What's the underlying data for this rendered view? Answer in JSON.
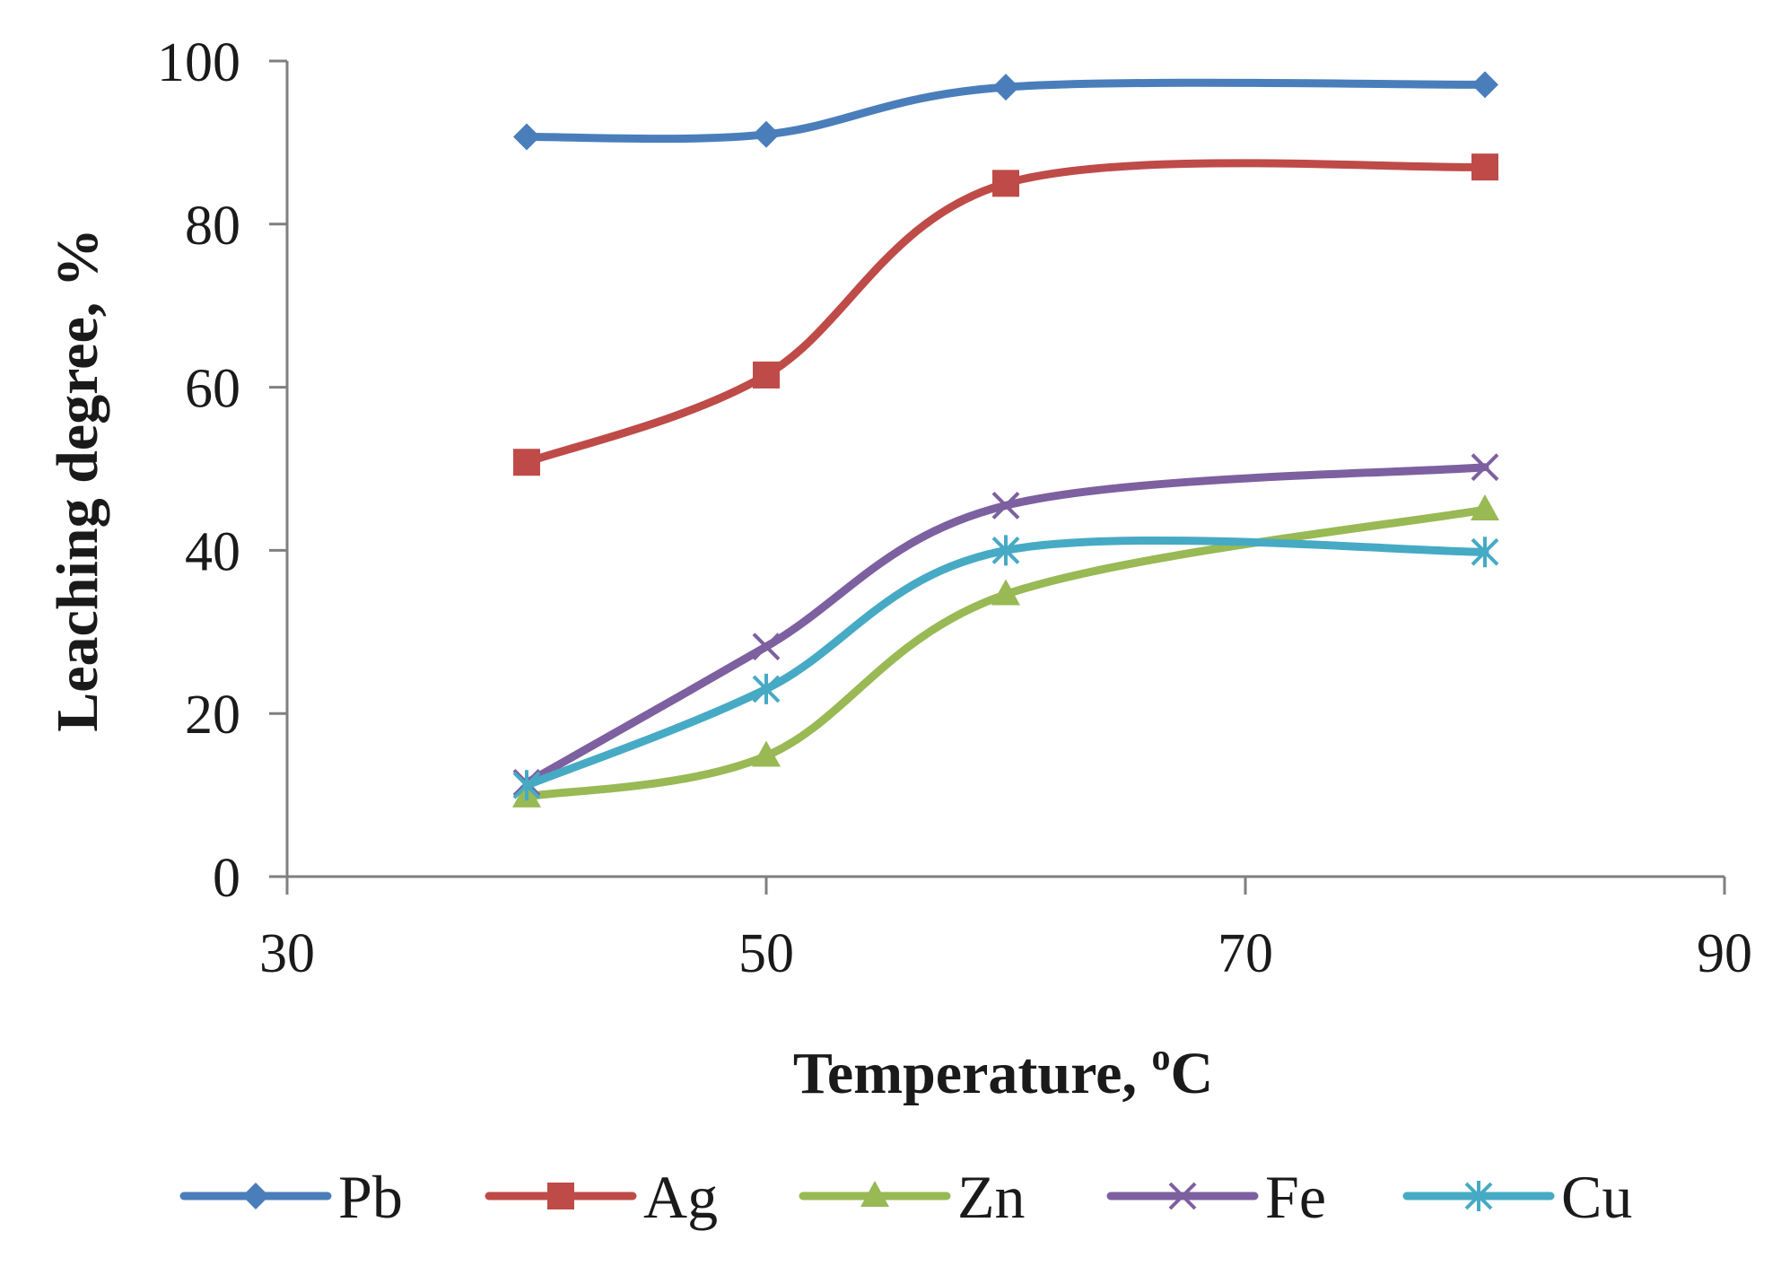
{
  "chart_data": {
    "type": "line",
    "smoothed": true,
    "title": "",
    "xlabel": "Temperature, ",
    "xlabel_unit_sup": "o",
    "xlabel_unit": "C",
    "ylabel": "Leaching degree, %",
    "xlim": [
      30,
      90
    ],
    "ylim": [
      0,
      100
    ],
    "xticks": [
      30,
      50,
      70,
      90
    ],
    "yticks": [
      0,
      20,
      40,
      60,
      80,
      100
    ],
    "grid": false,
    "legend_position": "bottom",
    "x": [
      40,
      50,
      60,
      80
    ],
    "series": [
      {
        "name": "Pb",
        "values": [
          90.7,
          91.0,
          96.8,
          97.1
        ],
        "color": "#4a7ebb",
        "marker": "diamond"
      },
      {
        "name": "Ag",
        "values": [
          50.8,
          61.5,
          85.0,
          87.0
        ],
        "color": "#be4b48",
        "marker": "square"
      },
      {
        "name": "Zn",
        "values": [
          9.8,
          14.8,
          34.6,
          45.0
        ],
        "color": "#98b954",
        "marker": "triangle"
      },
      {
        "name": "Fe",
        "values": [
          11.5,
          28.2,
          45.5,
          50.2
        ],
        "color": "#7d60a0",
        "marker": "x"
      },
      {
        "name": "Cu",
        "values": [
          11.2,
          23.0,
          40.0,
          39.8
        ],
        "color": "#46aac5",
        "marker": "star"
      }
    ]
  }
}
